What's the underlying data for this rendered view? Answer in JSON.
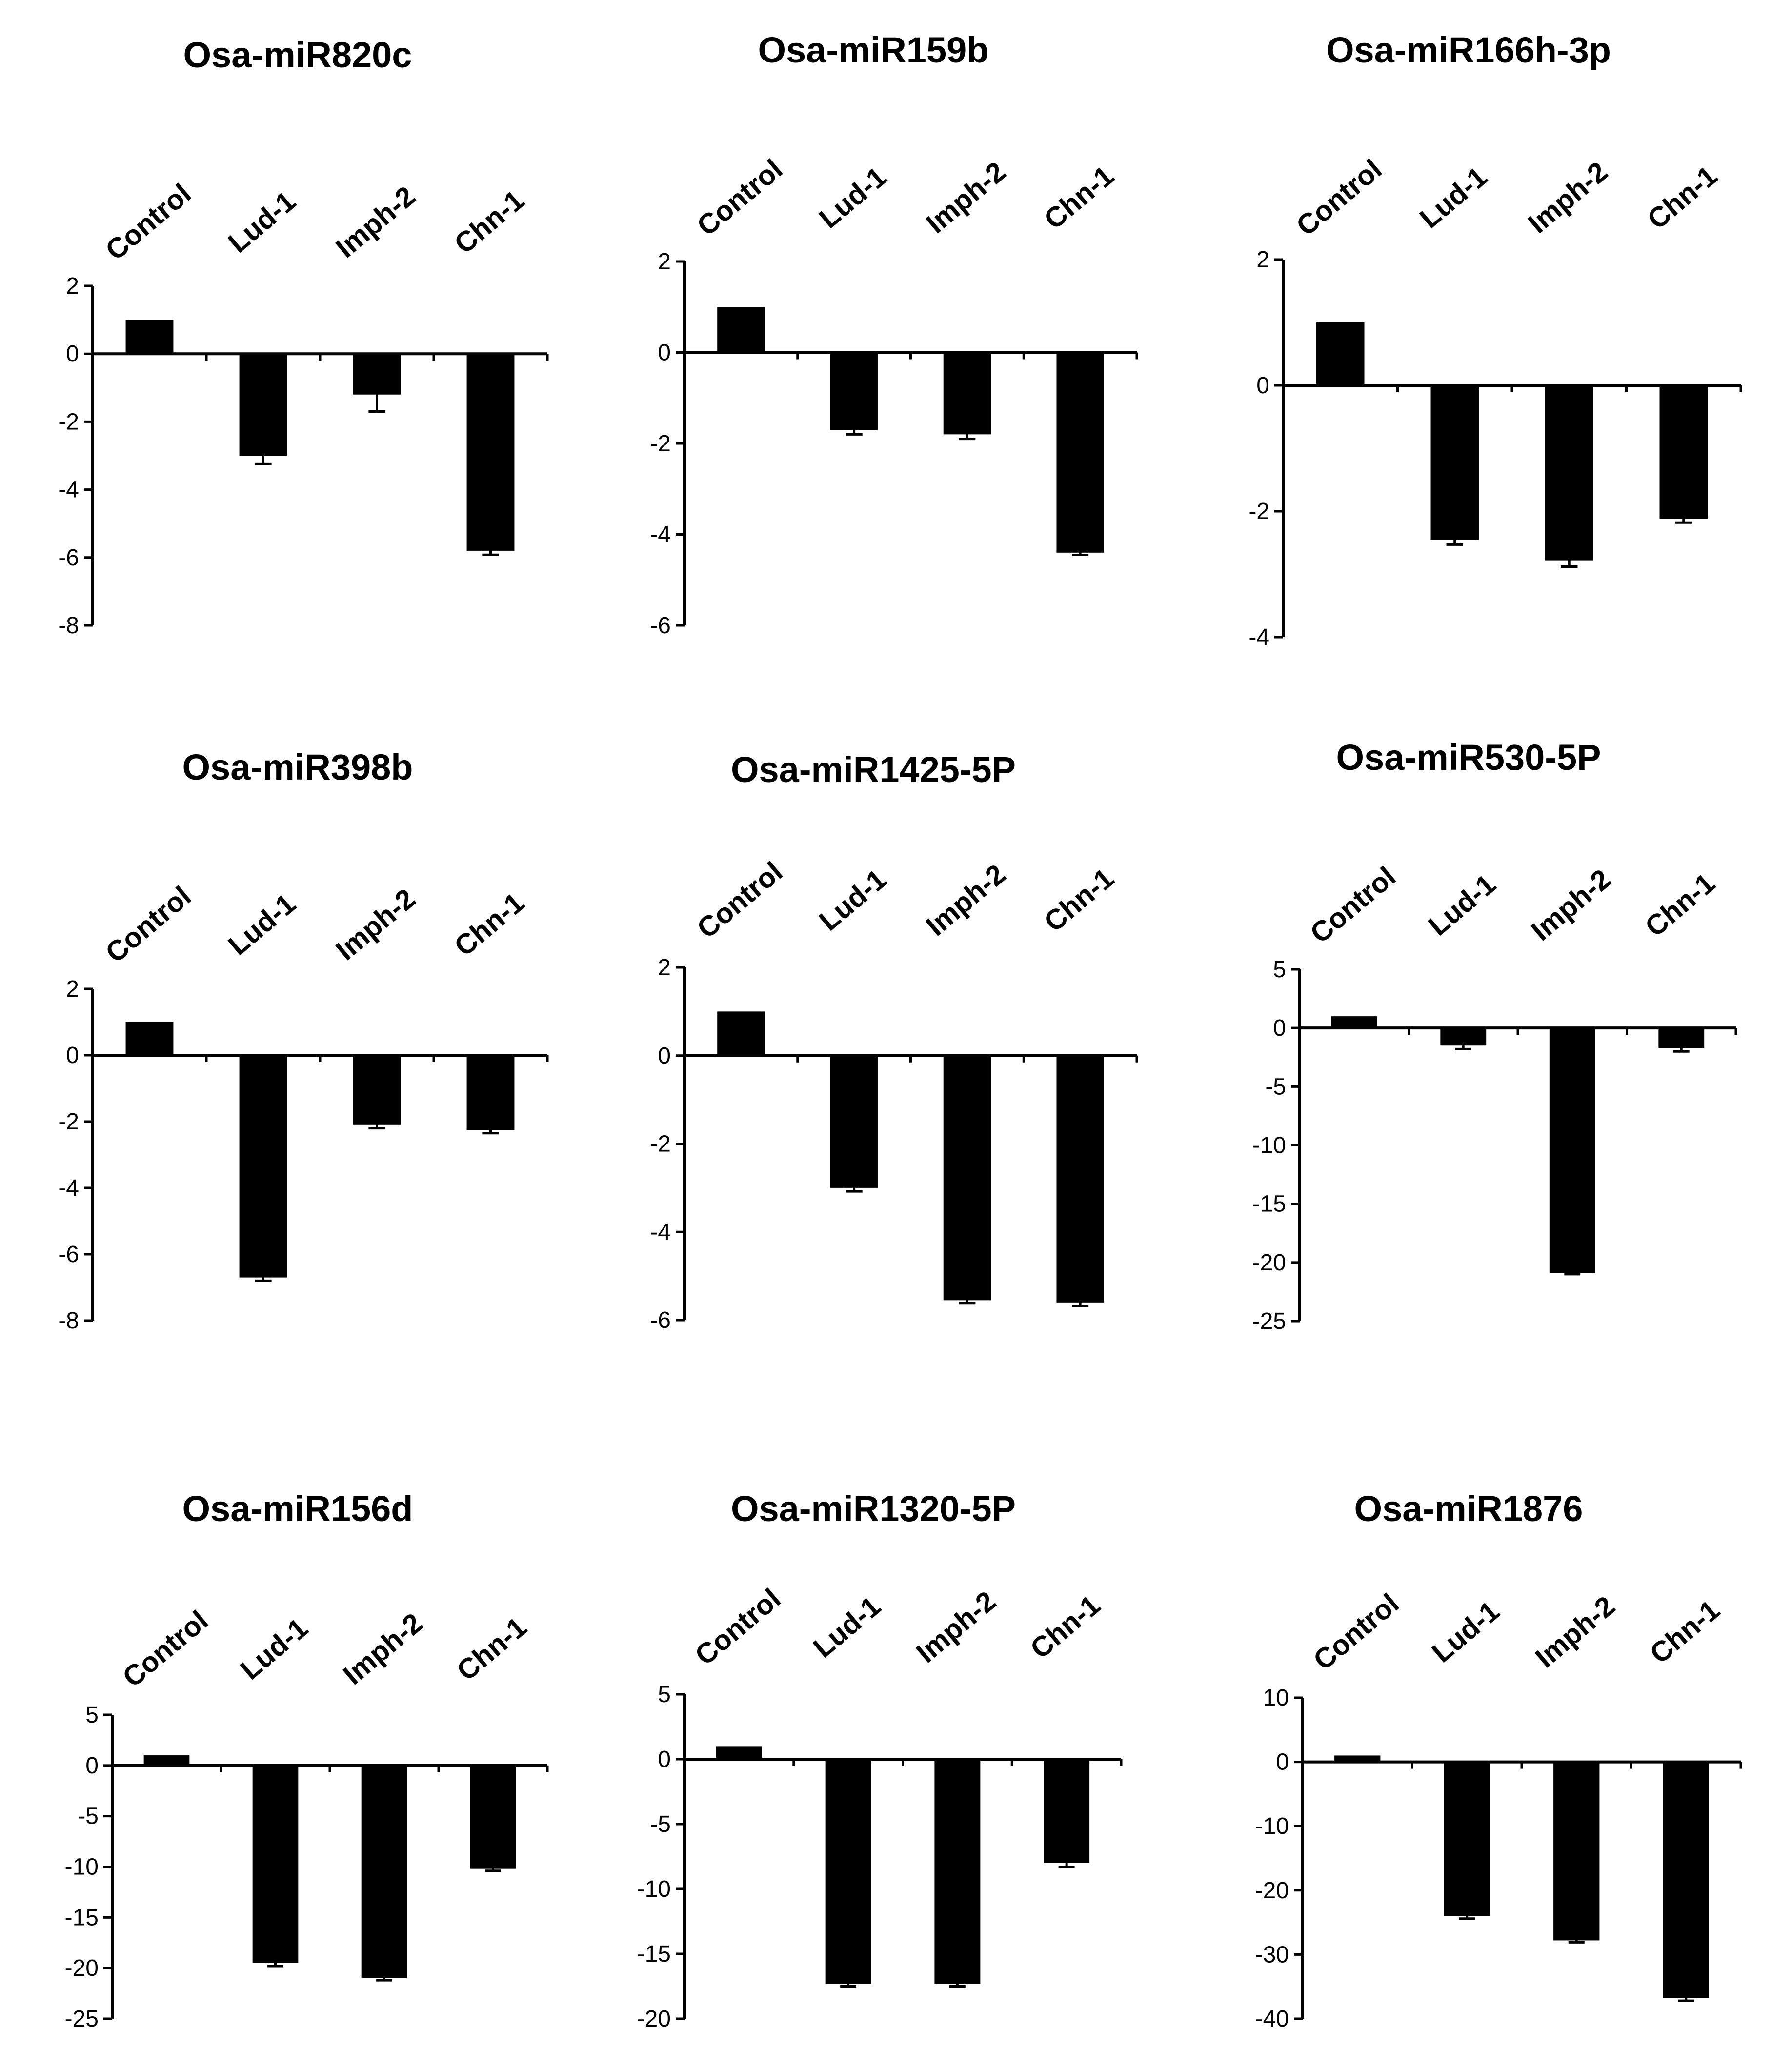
{
  "figure": {
    "categories": [
      "Control",
      "Lud-1",
      "Imph-2",
      "Chn-1"
    ],
    "bar_color": "#000000"
  },
  "chart_data": [
    {
      "type": "bar",
      "title": "Osa-miR820c",
      "categories": [
        "Control",
        "Lud-1",
        "Imph-2",
        "Chn-1"
      ],
      "values": [
        1.0,
        -3.0,
        -1.2,
        -5.8
      ],
      "errors": [
        0.0,
        0.25,
        0.5,
        0.12
      ],
      "ylim": [
        -8,
        2
      ],
      "yticks": [
        2,
        0,
        -2,
        -4,
        -6,
        -8
      ],
      "xlabel": "",
      "ylabel": ""
    },
    {
      "type": "bar",
      "title": "Osa-miR159b",
      "categories": [
        "Control",
        "Lud-1",
        "Imph-2",
        "Chn-1"
      ],
      "values": [
        1.0,
        -1.7,
        -1.8,
        -4.4
      ],
      "errors": [
        0.0,
        0.1,
        0.1,
        0.05
      ],
      "ylim": [
        -6,
        2
      ],
      "yticks": [
        2,
        0,
        -2,
        -4,
        -6
      ],
      "xlabel": "",
      "ylabel": ""
    },
    {
      "type": "bar",
      "title": "Osa-miR166h-3p",
      "categories": [
        "Control",
        "Lud-1",
        "Imph-2",
        "Chn-1"
      ],
      "values": [
        1.0,
        -2.45,
        -2.78,
        -2.12
      ],
      "errors": [
        0.0,
        0.08,
        0.1,
        0.06
      ],
      "ylim": [
        -4,
        2
      ],
      "yticks": [
        2,
        0,
        -2,
        -4
      ],
      "xlabel": "",
      "ylabel": ""
    },
    {
      "type": "bar",
      "title": "Osa-miR398b",
      "categories": [
        "Control",
        "Lud-1",
        "Imph-2",
        "Chn-1"
      ],
      "values": [
        1.0,
        -6.7,
        -2.1,
        -2.25
      ],
      "errors": [
        0.0,
        0.1,
        0.1,
        0.1
      ],
      "ylim": [
        -8,
        2
      ],
      "yticks": [
        2,
        0,
        -2,
        -4,
        -6,
        -8
      ],
      "xlabel": "",
      "ylabel": ""
    },
    {
      "type": "bar",
      "title": "Osa-miR1425-5P",
      "categories": [
        "Control",
        "Lud-1",
        "Imph-2",
        "Chn-1"
      ],
      "values": [
        1.0,
        -3.0,
        -5.55,
        -5.6
      ],
      "errors": [
        0.0,
        0.08,
        0.06,
        0.08
      ],
      "ylim": [
        -6,
        2
      ],
      "yticks": [
        2,
        0,
        -2,
        -4,
        -6
      ],
      "xlabel": "",
      "ylabel": ""
    },
    {
      "type": "bar",
      "title": "Osa-miR530-5P",
      "categories": [
        "Control",
        "Lud-1",
        "Imph-2",
        "Chn-1"
      ],
      "values": [
        1.0,
        -1.5,
        -20.9,
        -1.7
      ],
      "errors": [
        0.0,
        0.3,
        0.1,
        0.3
      ],
      "ylim": [
        -25,
        5
      ],
      "yticks": [
        5,
        0,
        -5,
        -10,
        -15,
        -20,
        -25
      ],
      "xlabel": "",
      "ylabel": ""
    },
    {
      "type": "bar",
      "title": "Osa-miR156d",
      "categories": [
        "Control",
        "Lud-1",
        "Imph-2",
        "Chn-1"
      ],
      "values": [
        1.0,
        -19.5,
        -21.0,
        -10.2
      ],
      "errors": [
        0.0,
        0.3,
        0.2,
        0.2
      ],
      "ylim": [
        -25,
        5
      ],
      "yticks": [
        5,
        0,
        -5,
        -10,
        -15,
        -20,
        -25
      ],
      "xlabel": "",
      "ylabel": ""
    },
    {
      "type": "bar",
      "title": "Osa-miR1320-5P",
      "categories": [
        "Control",
        "Lud-1",
        "Imph-2",
        "Chn-1"
      ],
      "values": [
        1.0,
        -17.3,
        -17.3,
        -8.0
      ],
      "errors": [
        0.0,
        0.2,
        0.2,
        0.3
      ],
      "ylim": [
        -20,
        5
      ],
      "yticks": [
        5,
        0,
        -5,
        -10,
        -15,
        -20
      ],
      "xlabel": "",
      "ylabel": ""
    },
    {
      "type": "bar",
      "title": "Osa-miR1876",
      "categories": [
        "Control",
        "Lud-1",
        "Imph-2",
        "Chn-1"
      ],
      "values": [
        1.0,
        -24.0,
        -27.8,
        -36.8
      ],
      "errors": [
        0.0,
        0.4,
        0.3,
        0.4
      ],
      "ylim": [
        -40,
        10
      ],
      "yticks": [
        10,
        0,
        -10,
        -20,
        -30,
        -40
      ],
      "xlabel": "",
      "ylabel": ""
    }
  ]
}
